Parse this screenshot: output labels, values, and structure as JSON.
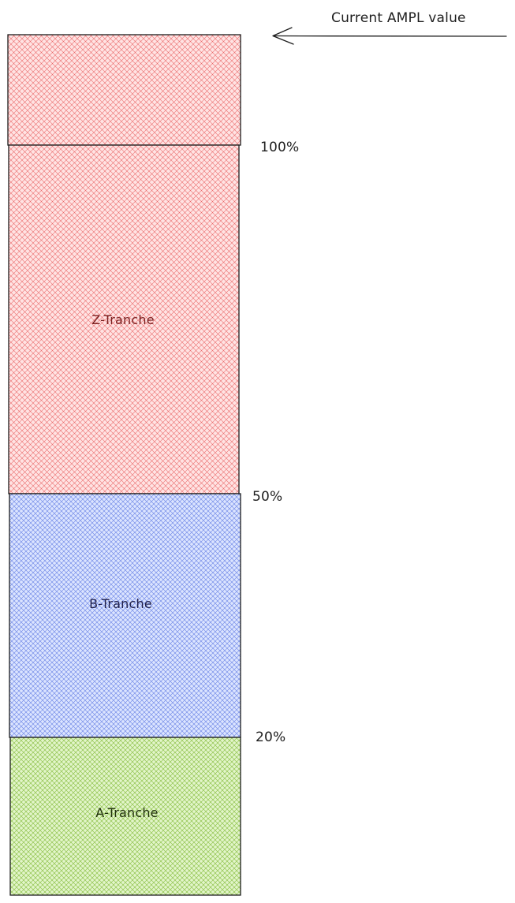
{
  "annotation": {
    "text": "Current AMPL value"
  },
  "thresholds": {
    "t100": "100%",
    "t50": "50%",
    "t20": "20%"
  },
  "tranches": {
    "z": {
      "label": "Z-Tranche",
      "color": "#e03131",
      "fill": "#ffc9c9",
      "text_color": "#7a1f1f"
    },
    "b": {
      "label": "B-Tranche",
      "color": "#3b5bdb",
      "fill": "#c5d0fb",
      "text_color": "#1e1e4a"
    },
    "a": {
      "label": "A-Tranche",
      "color": "#66a80f",
      "fill": "#d3f0b0",
      "text_color": "#1e2e0a"
    }
  },
  "colors": {
    "stroke": "#1e1e1e"
  }
}
